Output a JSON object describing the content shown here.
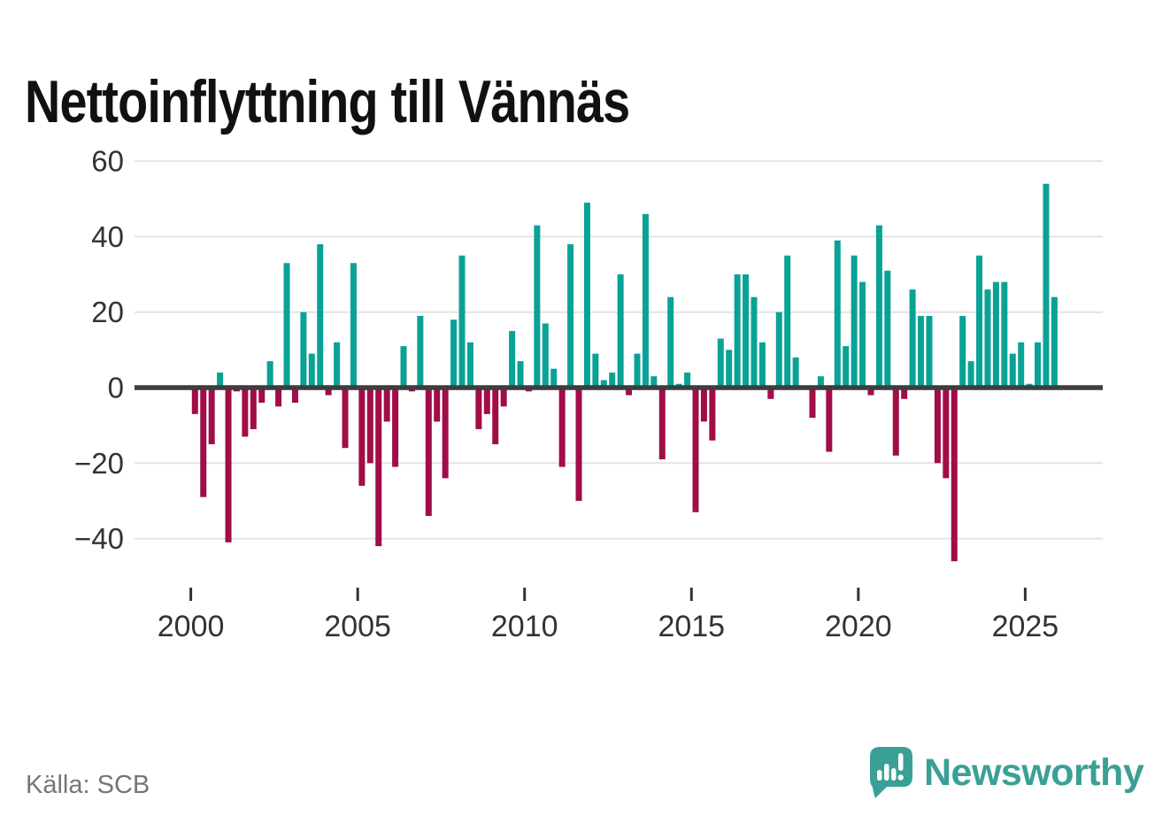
{
  "title": "Nettoinflyttning till Vännäs",
  "source": "Källa: SCB",
  "brand": {
    "name": "Newsworthy",
    "icon": "newsworthy-speech-bubble-barchart-icon"
  },
  "colors": {
    "positive": "#0aa296",
    "negative": "#a00d47",
    "grid": "#e4e4e4",
    "zero_line": "#3d3d3d",
    "axis_text": "#333333",
    "source_text": "#767676",
    "brand": "#3aa096",
    "title": "#111111",
    "background": "#ffffff"
  },
  "chart_data": {
    "type": "bar",
    "title": "Nettoinflyttning till Vännäs",
    "xlabel": "",
    "ylabel": "",
    "x_unit": "quarter",
    "start": "2000-Q1",
    "end": "2025-Q4",
    "y_ticks": [
      60,
      40,
      20,
      0,
      -20,
      -40
    ],
    "ylim": [
      -50,
      62
    ],
    "x_tick_labels": [
      "2000",
      "2005",
      "2010",
      "2015",
      "2020",
      "2025"
    ],
    "grid": "horizontal",
    "legend": "none",
    "values_by_year": {
      "2000": [
        -7,
        -29,
        -15,
        4
      ],
      "2001": [
        -41,
        -1,
        -13,
        -11
      ],
      "2002": [
        -4,
        7,
        -5,
        33
      ],
      "2003": [
        -4,
        20,
        9,
        38
      ],
      "2004": [
        -2,
        12,
        -16,
        33
      ],
      "2005": [
        -26,
        -20,
        -42,
        -9
      ],
      "2006": [
        -21,
        11,
        -1,
        19
      ],
      "2007": [
        -34,
        -9,
        -24,
        18
      ],
      "2008": [
        35,
        12,
        -11,
        -7
      ],
      "2009": [
        -15,
        -5,
        15,
        7
      ],
      "2010": [
        -1,
        43,
        17,
        5
      ],
      "2011": [
        -21,
        38,
        -30,
        49
      ],
      "2012": [
        9,
        2,
        4,
        30
      ],
      "2013": [
        -2,
        9,
        46,
        3
      ],
      "2014": [
        -19,
        24,
        1,
        4
      ],
      "2015": [
        -33,
        -9,
        -14,
        13
      ],
      "2016": [
        10,
        30,
        30,
        24
      ],
      "2017": [
        12,
        -3,
        20,
        35
      ],
      "2018": [
        8,
        0,
        -8,
        3
      ],
      "2019": [
        -17,
        39,
        11,
        35
      ],
      "2020": [
        28,
        -2,
        43,
        31
      ],
      "2021": [
        -18,
        -3,
        26,
        19
      ],
      "2022": [
        19,
        -20,
        -24,
        -46
      ],
      "2023": [
        19,
        7,
        35,
        26
      ],
      "2024": [
        28,
        28,
        9,
        12
      ],
      "2025": [
        1,
        12,
        54,
        24
      ]
    }
  }
}
